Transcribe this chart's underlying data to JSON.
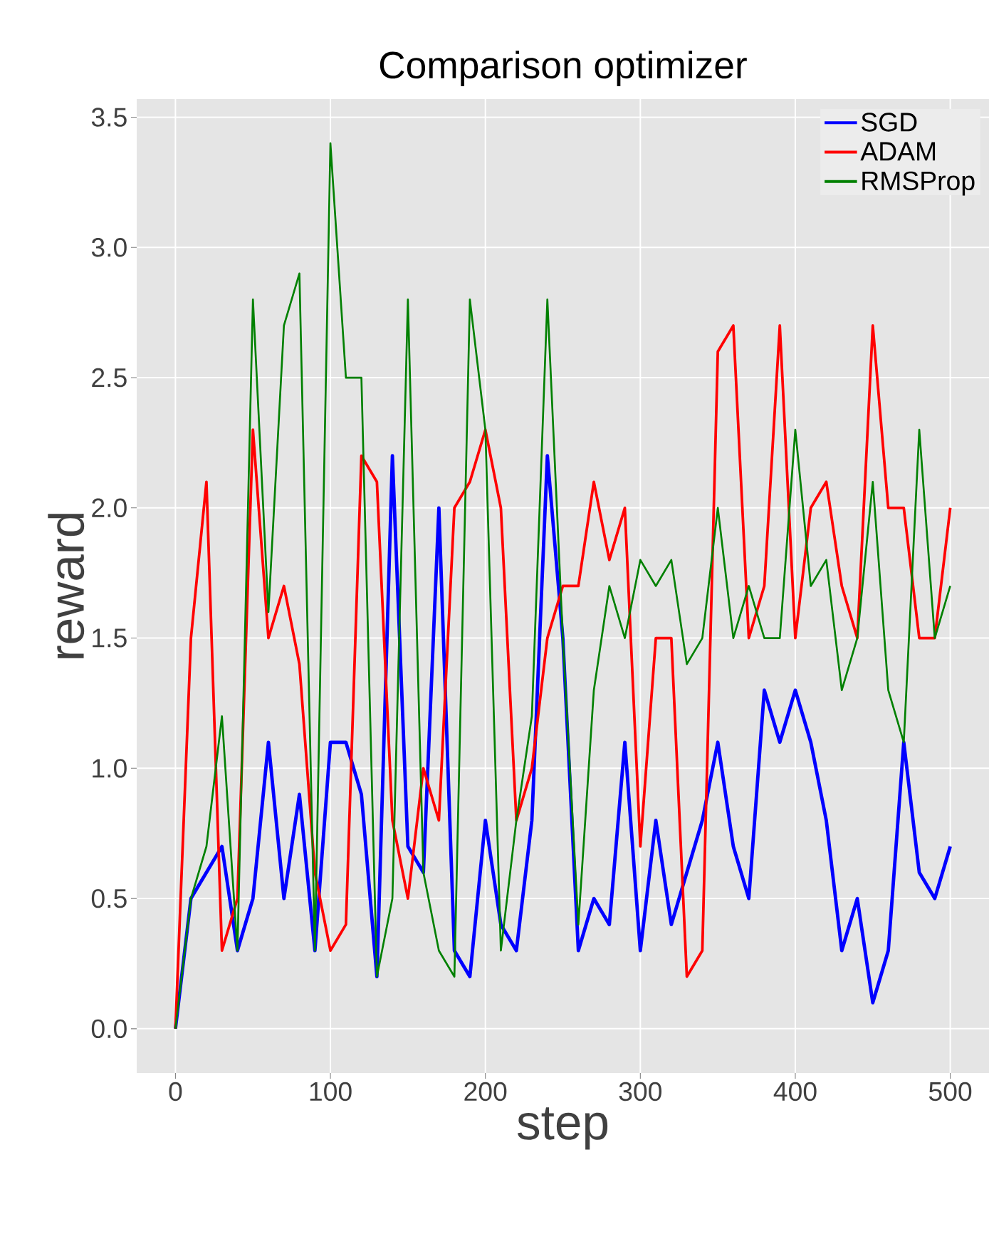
{
  "chart_data": {
    "type": "line",
    "title": "Comparison optimizer",
    "xlabel": "step",
    "ylabel": "reward",
    "x": [
      0,
      10,
      20,
      30,
      40,
      50,
      60,
      70,
      80,
      90,
      100,
      110,
      120,
      130,
      140,
      150,
      160,
      170,
      180,
      190,
      200,
      210,
      220,
      230,
      240,
      250,
      260,
      270,
      280,
      290,
      300,
      310,
      320,
      330,
      340,
      350,
      360,
      370,
      380,
      390,
      400,
      410,
      420,
      430,
      440,
      450,
      460,
      470,
      480,
      490,
      500
    ],
    "series": [
      {
        "name": "SGD",
        "color": "#0000ff",
        "values": [
          0,
          0.5,
          0.6,
          0.7,
          0.3,
          0.5,
          1.1,
          0.5,
          0.9,
          0.3,
          1.1,
          1.1,
          0.9,
          0.2,
          2.2,
          0.7,
          0.6,
          2.0,
          0.3,
          0.2,
          0.8,
          0.4,
          0.3,
          0.8,
          2.2,
          1.5,
          0.3,
          0.5,
          0.4,
          1.1,
          0.3,
          0.8,
          0.4,
          0.6,
          0.8,
          1.1,
          0.7,
          0.5,
          1.3,
          1.1,
          1.3,
          1.1,
          0.8,
          0.3,
          0.5,
          0.1,
          0.3,
          1.1,
          0.6,
          0.5,
          0.7
        ]
      },
      {
        "name": "ADAM",
        "color": "#ff0000",
        "values": [
          0,
          1.5,
          2.1,
          0.3,
          0.5,
          2.3,
          1.5,
          1.7,
          1.4,
          0.6,
          0.3,
          0.4,
          2.2,
          2.1,
          0.8,
          0.5,
          1.0,
          0.8,
          2.0,
          2.1,
          2.3,
          2.0,
          0.8,
          1.0,
          1.5,
          1.7,
          1.7,
          2.1,
          1.8,
          2.0,
          0.7,
          1.5,
          1.5,
          0.2,
          0.3,
          2.6,
          2.7,
          1.5,
          1.7,
          2.7,
          1.5,
          2.0,
          2.1,
          1.7,
          1.5,
          2.7,
          2.0,
          2.0,
          1.5,
          1.5,
          2.0
        ]
      },
      {
        "name": "RMSProp",
        "color": "#008000",
        "values": [
          0,
          0.5,
          0.7,
          1.2,
          0.3,
          2.8,
          1.6,
          2.7,
          2.9,
          0.3,
          3.4,
          2.5,
          2.5,
          0.2,
          0.5,
          2.8,
          0.6,
          0.3,
          0.2,
          2.8,
          2.3,
          0.3,
          0.8,
          1.2,
          2.8,
          1.5,
          0.4,
          1.3,
          1.7,
          1.5,
          1.8,
          1.7,
          1.8,
          1.4,
          1.5,
          2.0,
          1.5,
          1.7,
          1.5,
          1.5,
          2.3,
          1.7,
          1.8,
          1.3,
          1.5,
          2.1,
          1.3,
          1.1,
          2.3,
          1.5,
          1.7
        ]
      }
    ],
    "xlim": [
      -25,
      525
    ],
    "ylim": [
      -0.17,
      3.57
    ],
    "xticks": [
      0,
      100,
      200,
      300,
      400,
      500
    ],
    "yticks": [
      {
        "value": 0,
        "label": "0.0"
      },
      {
        "value": 0.5,
        "label": "0.5"
      },
      {
        "value": 1,
        "label": "1.0"
      },
      {
        "value": 1.5,
        "label": "1.5"
      },
      {
        "value": 2,
        "label": "2.0"
      },
      {
        "value": 2.5,
        "label": "2.5"
      },
      {
        "value": 3,
        "label": "3.0"
      },
      {
        "value": 3.5,
        "label": "3.5"
      }
    ],
    "grid": true,
    "legend": "top right"
  }
}
